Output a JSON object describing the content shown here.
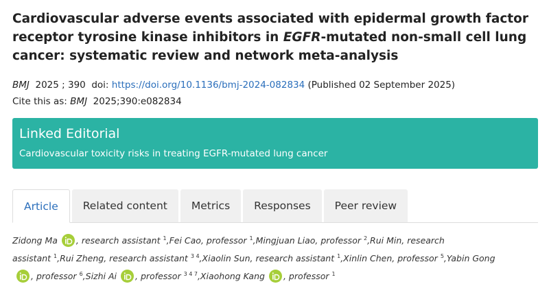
{
  "title": [
    "Cardiovascular adverse events associated with epidermal growth factor receptor tyrosine kinase inhibitors in ",
    "EGFR",
    "-mutated non-small cell lung cancer: systematic review and network meta-analysis"
  ],
  "citation": {
    "journal": "BMJ",
    "year": "2025",
    "volume": "; 390",
    "doi_label": "doi:",
    "doi_link": "https://doi.org/10.1136/bmj-2024-082834",
    "published": "(Published 02 September 2025)"
  },
  "cite_as": {
    "label": "Cite this as:",
    "journal": "BMJ",
    "reference": "2025;390:e082834"
  },
  "linked_editorial": {
    "heading": "Linked Editorial",
    "link": "Cardiovascular toxicity risks in treating EGFR-mutated lung cancer"
  },
  "tabs": {
    "items": [
      "Article",
      "Related content",
      "Metrics",
      "Responses",
      "Peer review"
    ],
    "active": 0
  },
  "authors": [
    {
      "name": "Zidong Ma",
      "orcid": true,
      "role": ", research assistant",
      "affiliations": "1",
      "after": ","
    },
    {
      "name": "Fei Cao",
      "orcid": false,
      "role": ", professor",
      "affiliations": "1",
      "after": ","
    },
    {
      "name": "Mingjuan Liao",
      "orcid": false,
      "role": ", professor",
      "affiliations": "2",
      "after": ","
    },
    {
      "name": "Rui Min",
      "orcid": false,
      "role": ", research assistant",
      "affiliations": "1",
      "after": ","
    },
    {
      "name": "Rui Zheng",
      "orcid": false,
      "role": ", research assistant",
      "affiliations": "3 4",
      "after": ","
    },
    {
      "name": "Xiaolin Sun",
      "orcid": false,
      "role": ", research assistant",
      "affiliations": "1",
      "after": ","
    },
    {
      "name": "Xinlin Chen",
      "orcid": false,
      "role": ", professor",
      "affiliations": "5",
      "after": ","
    },
    {
      "name": "Yabin Gong",
      "orcid": true,
      "role": ", professor",
      "affiliations": "6",
      "after": ","
    },
    {
      "name": "Sizhi Ai",
      "orcid": true,
      "role": ", professor",
      "affiliations": "3 4 7",
      "after": ","
    },
    {
      "name": "Xiaohong Kang",
      "orcid": true,
      "role": ", professor",
      "affiliations": "1",
      "after": ""
    }
  ]
}
